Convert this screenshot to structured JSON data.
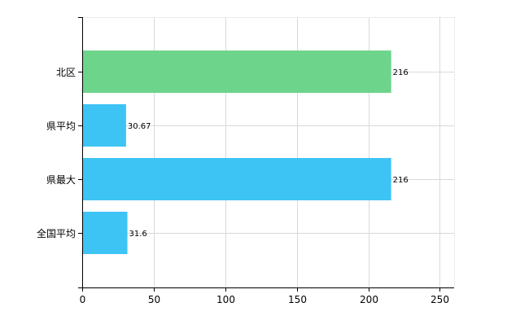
{
  "chart_data": {
    "type": "bar",
    "orientation": "horizontal",
    "categories": [
      "北区",
      "県平均",
      "県最大",
      "全国平均"
    ],
    "values": [
      216,
      30.67,
      216,
      31.6
    ],
    "value_labels": [
      "216",
      "30.67",
      "216",
      "31.6"
    ],
    "bar_colors": [
      "#6dd48c",
      "#3ec3f5",
      "#3ec3f5",
      "#3ec3f5"
    ],
    "xlim": [
      0,
      260
    ],
    "xticks": [
      0,
      50,
      100,
      150,
      200,
      250
    ],
    "xtick_labels": [
      "0",
      "50",
      "100",
      "150",
      "200",
      "250"
    ],
    "grid": true,
    "title": "",
    "xlabel": "",
    "ylabel": ""
  },
  "colors": {
    "grid": "#d9d9d9",
    "axis": "#000000",
    "highlight_bar": "#6dd48c",
    "bar": "#3ec3f5"
  }
}
